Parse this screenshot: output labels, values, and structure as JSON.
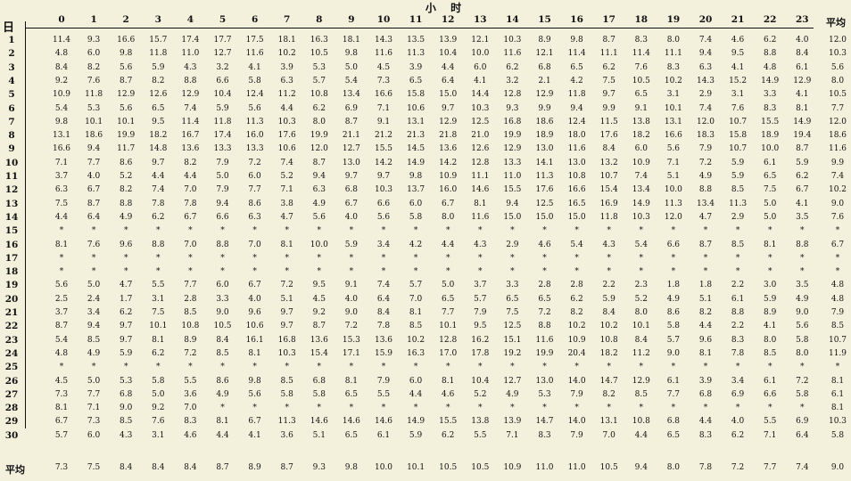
{
  "title": "小 时",
  "day_label": "日",
  "avg_label": "平均",
  "hours": [
    "0",
    "1",
    "2",
    "3",
    "4",
    "5",
    "6",
    "7",
    "8",
    "9",
    "10",
    "11",
    "12",
    "13",
    "14",
    "15",
    "16",
    "17",
    "18",
    "19",
    "20",
    "21",
    "22",
    "23"
  ],
  "rows": [
    {
      "day": "1",
      "vals": [
        "11.4",
        "9.3",
        "16.6",
        "15.7",
        "17.4",
        "17.7",
        "17.5",
        "18.1",
        "16.3",
        "18.1",
        "14.3",
        "13.5",
        "13.9",
        "12.1",
        "10.3",
        "8.9",
        "9.8",
        "8.7",
        "8.3",
        "8.0",
        "7.4",
        "4.6",
        "6.2",
        "4.0"
      ],
      "avg": "12.0"
    },
    {
      "day": "2",
      "vals": [
        "4.8",
        "6.0",
        "9.8",
        "11.8",
        "11.0",
        "12.7",
        "11.6",
        "10.2",
        "10.5",
        "9.8",
        "11.6",
        "11.3",
        "10.4",
        "10.0",
        "11.6",
        "12.1",
        "11.4",
        "11.1",
        "11.4",
        "11.1",
        "9.4",
        "9.5",
        "8.8",
        "8.4"
      ],
      "avg": "10.3"
    },
    {
      "day": "3",
      "vals": [
        "8.4",
        "8.2",
        "5.6",
        "5.9",
        "4.3",
        "3.2",
        "4.1",
        "3.9",
        "5.3",
        "5.0",
        "4.5",
        "3.9",
        "4.4",
        "6.0",
        "6.2",
        "6.8",
        "6.5",
        "6.2",
        "7.6",
        "8.3",
        "6.3",
        "4.1",
        "4.8",
        "6.1"
      ],
      "avg": "5.6"
    },
    {
      "day": "4",
      "vals": [
        "9.2",
        "7.6",
        "8.7",
        "8.2",
        "8.8",
        "6.6",
        "5.8",
        "6.3",
        "5.7",
        "5.4",
        "7.3",
        "6.5",
        "6.4",
        "4.1",
        "3.2",
        "2.1",
        "4.2",
        "7.5",
        "10.5",
        "10.2",
        "14.3",
        "15.2",
        "14.9",
        "12.9"
      ],
      "avg": "8.0"
    },
    {
      "day": "5",
      "vals": [
        "10.9",
        "11.8",
        "12.9",
        "12.6",
        "12.9",
        "10.4",
        "12.4",
        "11.2",
        "10.8",
        "13.4",
        "16.6",
        "15.8",
        "15.0",
        "14.4",
        "12.8",
        "12.9",
        "11.8",
        "9.7",
        "6.5",
        "3.1",
        "2.9",
        "3.1",
        "3.3",
        "4.1"
      ],
      "avg": "10.5"
    },
    {
      "day": "6",
      "vals": [
        "5.4",
        "5.3",
        "5.6",
        "6.5",
        "7.4",
        "5.9",
        "5.6",
        "4.4",
        "6.2",
        "6.9",
        "7.1",
        "10.6",
        "9.7",
        "10.3",
        "9.3",
        "9.9",
        "9.4",
        "9.9",
        "9.1",
        "10.1",
        "7.4",
        "7.6",
        "8.3",
        "8.1"
      ],
      "avg": "7.7"
    },
    {
      "day": "7",
      "vals": [
        "9.8",
        "10.1",
        "10.1",
        "9.5",
        "11.4",
        "11.8",
        "11.3",
        "10.3",
        "8.0",
        "8.7",
        "9.1",
        "13.1",
        "12.9",
        "12.5",
        "16.8",
        "18.6",
        "12.4",
        "11.5",
        "13.8",
        "13.1",
        "12.0",
        "10.7",
        "15.5",
        "14.9"
      ],
      "avg": "12.0"
    },
    {
      "day": "8",
      "vals": [
        "13.1",
        "18.6",
        "19.9",
        "18.2",
        "16.7",
        "17.4",
        "16.0",
        "17.6",
        "19.9",
        "21.1",
        "21.2",
        "21.3",
        "21.8",
        "21.0",
        "19.9",
        "18.9",
        "18.0",
        "17.6",
        "18.2",
        "16.6",
        "18.3",
        "15.8",
        "18.9",
        "19.4"
      ],
      "avg": "18.6"
    },
    {
      "day": "9",
      "vals": [
        "16.6",
        "9.4",
        "11.7",
        "14.8",
        "13.6",
        "13.3",
        "13.3",
        "10.6",
        "12.0",
        "12.7",
        "15.5",
        "14.5",
        "13.6",
        "12.6",
        "12.9",
        "13.0",
        "11.6",
        "8.4",
        "6.0",
        "5.6",
        "7.9",
        "10.7",
        "10.0",
        "8.7"
      ],
      "avg": "11.6"
    },
    {
      "day": "10",
      "vals": [
        "7.1",
        "7.7",
        "8.6",
        "9.7",
        "8.2",
        "7.9",
        "7.2",
        "7.4",
        "8.7",
        "13.0",
        "14.2",
        "14.9",
        "14.2",
        "12.8",
        "13.3",
        "14.1",
        "13.0",
        "13.2",
        "10.9",
        "7.1",
        "7.2",
        "5.9",
        "6.1",
        "5.9"
      ],
      "avg": "9.9"
    },
    {
      "day": "11",
      "vals": [
        "3.7",
        "4.0",
        "5.2",
        "4.4",
        "4.4",
        "5.0",
        "6.0",
        "5.2",
        "9.4",
        "9.7",
        "9.7",
        "9.8",
        "10.9",
        "11.1",
        "11.0",
        "11.3",
        "10.8",
        "10.7",
        "7.4",
        "5.1",
        "4.9",
        "5.9",
        "6.5",
        "6.2"
      ],
      "avg": "7.4"
    },
    {
      "day": "12",
      "vals": [
        "6.3",
        "6.7",
        "8.2",
        "7.4",
        "7.0",
        "7.9",
        "7.7",
        "7.1",
        "6.3",
        "6.8",
        "10.3",
        "13.7",
        "16.0",
        "14.6",
        "15.5",
        "17.6",
        "16.6",
        "15.4",
        "13.4",
        "10.0",
        "8.8",
        "8.5",
        "7.5",
        "6.7"
      ],
      "avg": "10.2"
    },
    {
      "day": "13",
      "vals": [
        "7.5",
        "8.7",
        "8.8",
        "7.8",
        "7.8",
        "9.4",
        "8.6",
        "3.8",
        "4.9",
        "6.7",
        "6.6",
        "6.0",
        "6.7",
        "8.1",
        "9.4",
        "12.5",
        "16.5",
        "16.9",
        "14.9",
        "11.3",
        "13.4",
        "11.3",
        "5.0",
        "4.1"
      ],
      "avg": "9.0"
    },
    {
      "day": "14",
      "vals": [
        "4.4",
        "6.4",
        "4.9",
        "6.2",
        "6.7",
        "6.6",
        "6.3",
        "4.7",
        "5.6",
        "4.0",
        "5.6",
        "5.8",
        "8.0",
        "11.6",
        "15.0",
        "15.0",
        "15.0",
        "11.8",
        "10.3",
        "12.0",
        "4.7",
        "2.9",
        "5.0",
        "3.5"
      ],
      "avg": "7.6"
    },
    {
      "day": "15",
      "vals": [
        "*",
        "*",
        "*",
        "*",
        "*",
        "*",
        "*",
        "*",
        "*",
        "*",
        "*",
        "*",
        "*",
        "*",
        "*",
        "*",
        "*",
        "*",
        "*",
        "*",
        "*",
        "*",
        "*",
        "*"
      ],
      "avg": "*"
    },
    {
      "day": "16",
      "vals": [
        "8.1",
        "7.6",
        "9.6",
        "8.8",
        "7.0",
        "8.8",
        "7.0",
        "8.1",
        "10.0",
        "5.9",
        "3.4",
        "4.2",
        "4.4",
        "4.3",
        "2.9",
        "4.6",
        "5.4",
        "4.3",
        "5.4",
        "6.6",
        "8.7",
        "8.5",
        "8.1",
        "8.8"
      ],
      "avg": "6.7"
    },
    {
      "day": "17",
      "vals": [
        "*",
        "*",
        "*",
        "*",
        "*",
        "*",
        "*",
        "*",
        "*",
        "*",
        "*",
        "*",
        "*",
        "*",
        "*",
        "*",
        "*",
        "*",
        "*",
        "*",
        "*",
        "*",
        "*",
        "*"
      ],
      "avg": "*"
    },
    {
      "day": "18",
      "vals": [
        "*",
        "*",
        "*",
        "*",
        "*",
        "*",
        "*",
        "*",
        "*",
        "*",
        "*",
        "*",
        "*",
        "*",
        "*",
        "*",
        "*",
        "*",
        "*",
        "*",
        "*",
        "*",
        "*",
        "*"
      ],
      "avg": "*"
    },
    {
      "day": "19",
      "vals": [
        "5.6",
        "5.0",
        "4.7",
        "5.5",
        "7.7",
        "6.0",
        "6.7",
        "7.2",
        "9.5",
        "9.1",
        "7.4",
        "5.7",
        "5.0",
        "3.7",
        "3.3",
        "2.8",
        "2.8",
        "2.2",
        "2.3",
        "1.8",
        "1.8",
        "2.2",
        "3.0",
        "3.5"
      ],
      "avg": "4.8"
    },
    {
      "day": "20",
      "vals": [
        "2.5",
        "2.4",
        "1.7",
        "3.1",
        "2.8",
        "3.3",
        "4.0",
        "5.1",
        "4.5",
        "4.0",
        "6.4",
        "7.0",
        "6.5",
        "5.7",
        "6.5",
        "6.5",
        "6.2",
        "5.9",
        "5.2",
        "4.9",
        "5.1",
        "6.1",
        "5.9",
        "4.9"
      ],
      "avg": "4.8"
    },
    {
      "day": "21",
      "vals": [
        "3.7",
        "3.4",
        "6.2",
        "7.5",
        "8.5",
        "9.0",
        "9.6",
        "9.7",
        "9.2",
        "9.0",
        "8.4",
        "8.1",
        "7.7",
        "7.9",
        "7.5",
        "7.2",
        "8.2",
        "8.4",
        "8.0",
        "8.6",
        "8.2",
        "8.8",
        "8.9",
        "9.0"
      ],
      "avg": "7.9"
    },
    {
      "day": "22",
      "vals": [
        "8.7",
        "9.4",
        "9.7",
        "10.1",
        "10.8",
        "10.5",
        "10.6",
        "9.7",
        "8.7",
        "7.2",
        "7.8",
        "8.5",
        "10.1",
        "9.5",
        "12.5",
        "8.8",
        "10.2",
        "10.2",
        "10.1",
        "5.8",
        "4.4",
        "2.2",
        "4.1",
        "5.6"
      ],
      "avg": "8.5"
    },
    {
      "day": "23",
      "vals": [
        "5.4",
        "8.5",
        "9.7",
        "8.1",
        "8.9",
        "8.4",
        "16.1",
        "16.8",
        "13.6",
        "15.3",
        "13.6",
        "10.2",
        "12.8",
        "16.2",
        "15.1",
        "11.6",
        "10.9",
        "10.8",
        "8.4",
        "5.7",
        "9.6",
        "8.3",
        "8.0",
        "5.8"
      ],
      "avg": "10.7"
    },
    {
      "day": "24",
      "vals": [
        "4.8",
        "4.9",
        "5.9",
        "6.2",
        "7.2",
        "8.5",
        "8.1",
        "10.3",
        "15.4",
        "17.1",
        "15.9",
        "16.3",
        "17.0",
        "17.8",
        "19.2",
        "19.9",
        "20.4",
        "18.2",
        "11.2",
        "9.0",
        "8.1",
        "7.8",
        "8.5",
        "8.0"
      ],
      "avg": "11.9"
    },
    {
      "day": "25",
      "vals": [
        "*",
        "*",
        "*",
        "*",
        "*",
        "*",
        "*",
        "*",
        "*",
        "*",
        "*",
        "*",
        "*",
        "*",
        "*",
        "*",
        "*",
        "*",
        "*",
        "*",
        "*",
        "*",
        "*",
        "*"
      ],
      "avg": "*"
    },
    {
      "day": "26",
      "vals": [
        "4.5",
        "5.0",
        "5.3",
        "5.8",
        "5.5",
        "8.6",
        "9.8",
        "8.5",
        "6.8",
        "8.1",
        "7.9",
        "6.0",
        "8.1",
        "10.4",
        "12.7",
        "13.0",
        "14.0",
        "14.7",
        "12.9",
        "6.1",
        "3.9",
        "3.4",
        "6.1",
        "7.2"
      ],
      "avg": "8.1"
    },
    {
      "day": "27",
      "vals": [
        "7.3",
        "7.7",
        "6.8",
        "5.0",
        "3.6",
        "4.9",
        "5.6",
        "5.8",
        "5.8",
        "6.5",
        "5.5",
        "4.4",
        "4.6",
        "5.2",
        "4.9",
        "5.3",
        "7.9",
        "8.2",
        "8.5",
        "7.7",
        "6.8",
        "6.9",
        "6.6",
        "5.8"
      ],
      "avg": "6.1"
    },
    {
      "day": "28",
      "vals": [
        "8.1",
        "7.1",
        "9.0",
        "9.2",
        "7.0",
        "*",
        "*",
        "*",
        "*",
        "*",
        "*",
        "*",
        "*",
        "*",
        "*",
        "*",
        "*",
        "*",
        "*",
        "*",
        "*",
        "*",
        "*",
        "*"
      ],
      "avg": "8.1"
    },
    {
      "day": "29",
      "vals": [
        "6.7",
        "7.3",
        "8.5",
        "7.6",
        "8.3",
        "8.1",
        "6.7",
        "11.3",
        "14.6",
        "14.6",
        "14.6",
        "14.9",
        "15.5",
        "13.8",
        "13.9",
        "14.7",
        "14.0",
        "13.1",
        "10.8",
        "6.8",
        "4.4",
        "4.0",
        "5.5",
        "6.9"
      ],
      "avg": "10.3"
    },
    {
      "day": "30",
      "vals": [
        "5.7",
        "6.0",
        "4.3",
        "3.1",
        "4.6",
        "4.4",
        "4.1",
        "3.6",
        "5.1",
        "6.5",
        "6.1",
        "5.9",
        "6.2",
        "5.5",
        "7.1",
        "8.3",
        "7.9",
        "7.0",
        "4.4",
        "6.5",
        "8.3",
        "6.2",
        "7.1",
        "6.4"
      ],
      "avg": "5.8"
    }
  ],
  "footer": {
    "label": "平均",
    "vals": [
      "7.3",
      "7.5",
      "8.4",
      "8.4",
      "8.4",
      "8.7",
      "8.9",
      "8.7",
      "9.3",
      "9.8",
      "10.0",
      "10.1",
      "10.5",
      "10.5",
      "10.9",
      "11.0",
      "11.0",
      "10.5",
      "9.4",
      "8.0",
      "7.8",
      "7.2",
      "7.7",
      "7.4"
    ],
    "avg": "9.0"
  }
}
